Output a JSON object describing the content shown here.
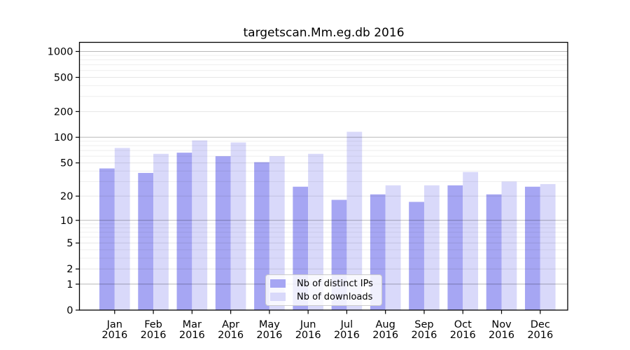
{
  "chart_data": {
    "type": "bar",
    "title": "targetscan.Mm.eg.db 2016",
    "categories": [
      "Jan",
      "Feb",
      "Mar",
      "Apr",
      "May",
      "Jun",
      "Jul",
      "Aug",
      "Sep",
      "Oct",
      "Nov",
      "Dec"
    ],
    "category_year": "2016",
    "series": [
      {
        "name": "Nb of distinct IPs",
        "color": "#a6a6f3",
        "values": [
          43,
          38,
          66,
          60,
          51,
          26,
          18,
          21,
          17,
          27,
          21,
          26
        ]
      },
      {
        "name": "Nb of downloads",
        "color": "#d9d9fa",
        "values": [
          75,
          64,
          92,
          87,
          60,
          64,
          116,
          27,
          27,
          39,
          30,
          28
        ]
      }
    ],
    "xlabel": "",
    "ylabel": "",
    "yscale": "log1p",
    "yticks": [
      0,
      1,
      2,
      5,
      10,
      20,
      50,
      100,
      200,
      500,
      1000
    ],
    "ylim": [
      0,
      1278
    ],
    "grid": "on",
    "legend_position": "bottom-center-inside"
  }
}
